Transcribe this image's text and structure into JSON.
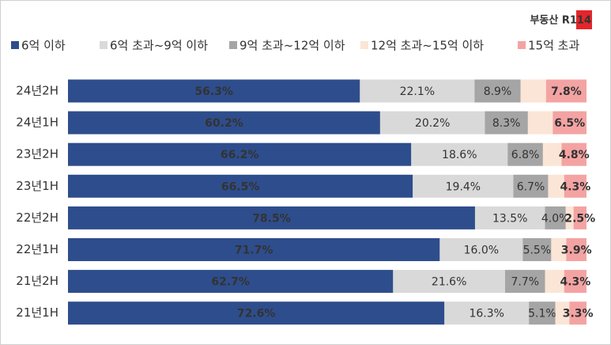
{
  "logo": "부동산 R114",
  "chart_data": {
    "type": "stacked-barh",
    "categories": [
      "24년2H",
      "24년1H",
      "23년2H",
      "23년1H",
      "22년2H",
      "22년1H",
      "21년2H",
      "21년1H"
    ],
    "xlim": [
      0,
      100
    ],
    "legend": "top",
    "series": [
      {
        "name": "6억 이하",
        "color": "#2e4d8c",
        "values": [
          56.3,
          60.2,
          66.2,
          66.5,
          78.5,
          71.7,
          62.7,
          72.6
        ],
        "value_labels": [
          "56.3%",
          "60.2%",
          "66.2%",
          "66.5%",
          "78.5%",
          "71.7%",
          "62.7%",
          "72.6%"
        ]
      },
      {
        "name": "6억 초과~9억 이하",
        "color": "#d9d9d9",
        "values": [
          22.1,
          20.2,
          18.6,
          19.4,
          13.5,
          16.0,
          21.6,
          16.3
        ],
        "value_labels": [
          "22.1%",
          "20.2%",
          "18.6%",
          "19.4%",
          "13.5%",
          "16.0%",
          "21.6%",
          "16.3%"
        ]
      },
      {
        "name": "9억 초과~12억 이하",
        "color": "#a5a5a5",
        "values": [
          8.9,
          8.3,
          6.8,
          6.7,
          4.0,
          5.5,
          7.7,
          5.1
        ],
        "value_labels": [
          "8.9%",
          "8.3%",
          "6.8%",
          "6.7%",
          "4.0%",
          "5.5%",
          "7.7%",
          "5.1%"
        ]
      },
      {
        "name": "12억 초과~15억 이하",
        "color": "#fbe5d6",
        "values": [
          4.9,
          4.8,
          3.6,
          3.1,
          1.5,
          2.9,
          3.7,
          2.7
        ]
      },
      {
        "name": "15억 초과",
        "color": "#f4a3a3",
        "values": [
          7.8,
          6.5,
          4.8,
          4.3,
          2.5,
          3.9,
          4.3,
          3.3
        ],
        "value_labels": [
          "7.8%",
          "6.5%",
          "4.8%",
          "4.3%",
          "2.5%",
          "3.9%",
          "4.3%",
          "3.3%"
        ]
      }
    ]
  }
}
